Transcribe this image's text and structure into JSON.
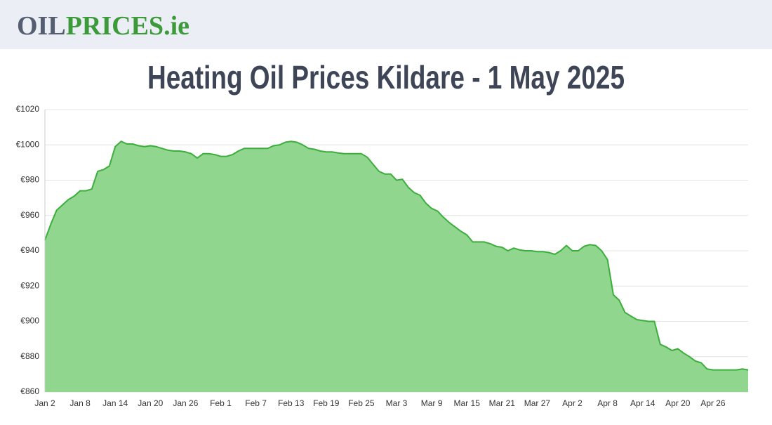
{
  "header": {
    "logo": {
      "part1": "OIL",
      "part2": "PRICES.ie"
    }
  },
  "chart_data": {
    "type": "area",
    "title": "Heating Oil Prices Kildare - 1 May 2025",
    "categories": [
      "Jan 2",
      null,
      null,
      null,
      null,
      null,
      "Jan 8",
      null,
      null,
      null,
      null,
      null,
      "Jan 14",
      null,
      null,
      null,
      null,
      null,
      "Jan 20",
      null,
      null,
      null,
      null,
      null,
      "Jan 26",
      null,
      null,
      null,
      null,
      null,
      "Feb 1",
      null,
      null,
      null,
      null,
      null,
      "Feb 7",
      null,
      null,
      null,
      null,
      null,
      "Feb 13",
      null,
      null,
      null,
      null,
      null,
      "Feb 19",
      null,
      null,
      null,
      null,
      null,
      "Feb 25",
      null,
      null,
      null,
      null,
      null,
      "Mar 3",
      null,
      null,
      null,
      null,
      null,
      "Mar 9",
      null,
      null,
      null,
      null,
      null,
      "Mar 15",
      null,
      null,
      null,
      null,
      null,
      "Mar 21",
      null,
      null,
      null,
      null,
      null,
      "Mar 27",
      null,
      null,
      null,
      null,
      null,
      "Apr 2",
      null,
      null,
      null,
      null,
      null,
      "Apr 8",
      null,
      null,
      null,
      null,
      null,
      "Apr 14",
      null,
      null,
      null,
      null,
      null,
      "Apr 20",
      null,
      null,
      null,
      null,
      null,
      "Apr 26",
      null,
      null,
      null,
      null,
      null,
      null
    ],
    "values": [
      946,
      955,
      963,
      966,
      969,
      971,
      974,
      974,
      975,
      985,
      986,
      988,
      999,
      1002,
      1000.5,
      1000.5,
      999.5,
      999,
      999.5,
      999,
      998,
      997,
      996.5,
      996.5,
      996,
      995,
      992.5,
      995,
      995,
      994.5,
      993.5,
      993.5,
      994.5,
      996.5,
      998,
      998,
      998,
      998,
      998,
      999.5,
      1000,
      1001.5,
      1002,
      1001.5,
      1000,
      998,
      997.5,
      996.5,
      996,
      996,
      995.5,
      995,
      995,
      995,
      995,
      993,
      989,
      985,
      983.5,
      983.5,
      980,
      980.5,
      976,
      973,
      971.5,
      967,
      964,
      962.5,
      959,
      956,
      953.5,
      951,
      949,
      945,
      945,
      945,
      944,
      942.5,
      942,
      940,
      941.5,
      940.5,
      940,
      940,
      939.5,
      939.5,
      939,
      938,
      940,
      943,
      940,
      940,
      942.5,
      943.5,
      943,
      940,
      935,
      915,
      912,
      905,
      903,
      901,
      900.5,
      900,
      900,
      887,
      885.5,
      883.5,
      884.5,
      882,
      880,
      877.5,
      876.5,
      873,
      872.5,
      872.5,
      872.5,
      872.5,
      872.5,
      873,
      872.5
    ],
    "color": "#3cae3c",
    "fill": "#90d68f",
    "ylim": [
      860,
      1020
    ],
    "yticks": [
      {
        "value": 860,
        "label": "€860"
      },
      {
        "value": 880,
        "label": "€880"
      },
      {
        "value": 900,
        "label": "€900"
      },
      {
        "value": 920,
        "label": "€920"
      },
      {
        "value": 940,
        "label": "€940"
      },
      {
        "value": 960,
        "label": "€960"
      },
      {
        "value": 980,
        "label": "€980"
      },
      {
        "value": 1000,
        "label": "€1000"
      },
      {
        "value": 1020,
        "label": "€1020"
      }
    ],
    "grid": true
  }
}
